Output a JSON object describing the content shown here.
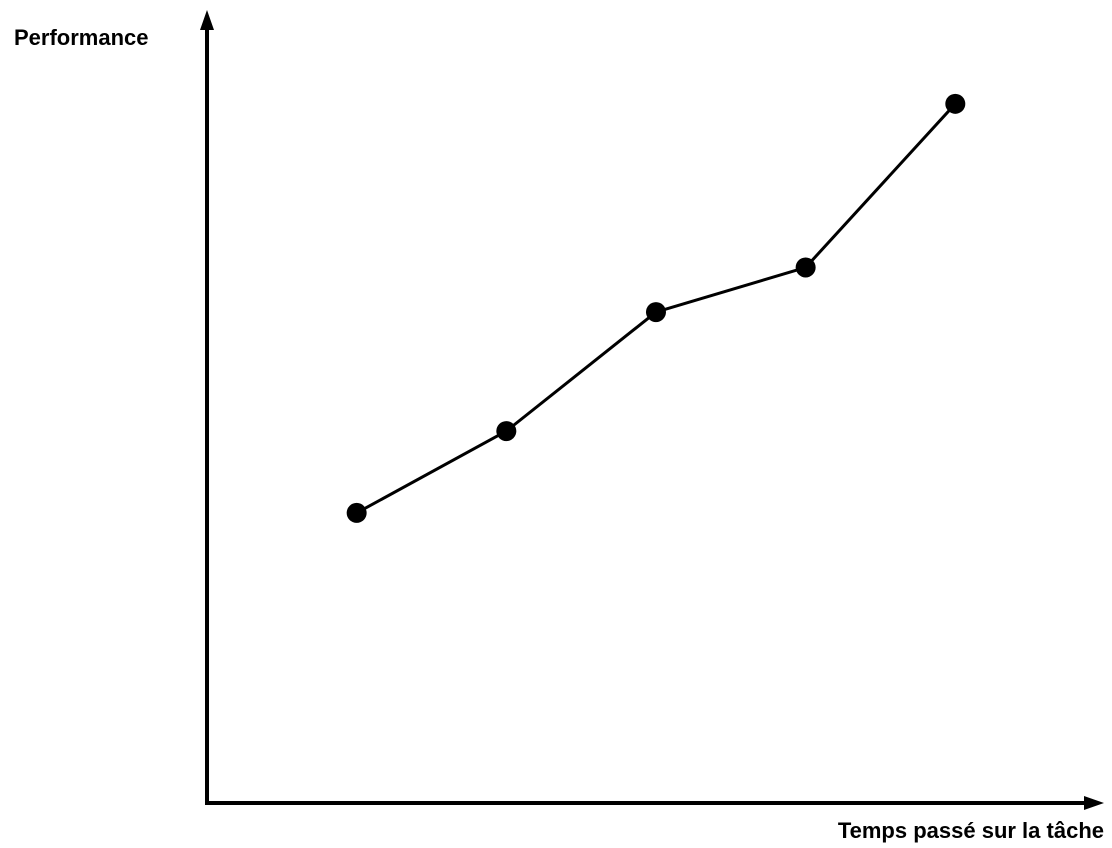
{
  "chart_data": {
    "type": "line",
    "title": "",
    "xlabel": "Temps passé sur la tâche",
    "ylabel": "Performance",
    "x": [
      1,
      2,
      3,
      4,
      5
    ],
    "series": [
      {
        "values": [
          3.9,
          5.0,
          6.6,
          7.2,
          9.4
        ]
      }
    ],
    "xlim": [
      0,
      5.9
    ],
    "ylim": [
      0,
      10.5
    ],
    "grid": false,
    "show_ticks": false,
    "line_color": "#000000",
    "marker_color": "#000000",
    "axis_color": "#000000"
  }
}
